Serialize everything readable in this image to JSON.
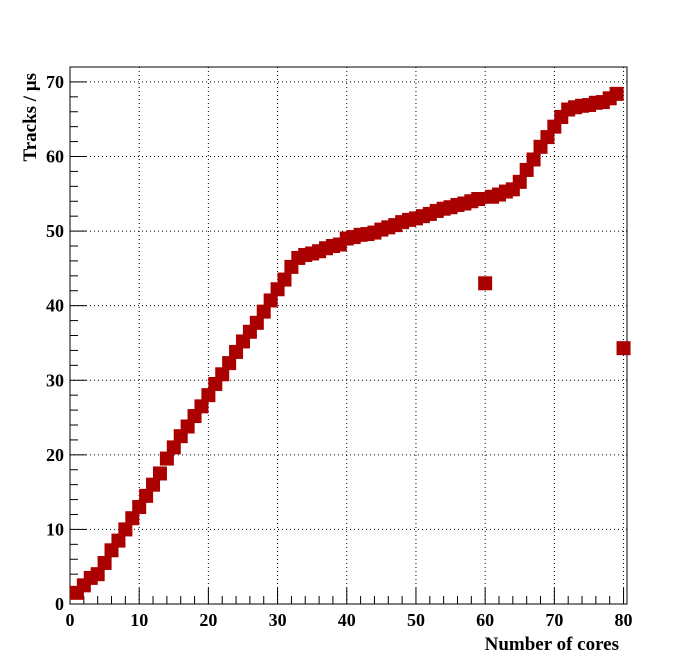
{
  "chart_data": {
    "type": "scatter",
    "xlabel": "Number of cores",
    "ylabel": "Tracks / μs",
    "xlim": [
      0,
      80.5
    ],
    "ylim": [
      0,
      72
    ],
    "xticks": [
      0,
      10,
      20,
      30,
      40,
      50,
      60,
      70,
      80
    ],
    "yticks": [
      0,
      10,
      20,
      30,
      40,
      50,
      60,
      70
    ],
    "grid": true,
    "marker_color": "#aa0000",
    "series": [
      {
        "x": [
          1,
          2,
          3,
          4,
          5,
          6,
          7,
          8,
          9,
          10,
          11,
          12,
          13,
          14,
          15,
          16,
          17,
          18,
          19,
          20,
          21,
          22,
          23,
          24,
          25,
          26,
          27,
          28,
          29,
          30,
          31,
          32,
          33,
          34,
          35,
          36,
          37,
          38,
          39,
          40,
          41,
          42,
          43,
          44,
          45,
          46,
          47,
          48,
          49,
          50,
          51,
          52,
          53,
          54,
          55,
          56,
          57,
          58,
          59,
          60,
          61,
          62,
          63,
          64,
          65,
          66,
          67,
          68,
          69,
          70,
          71,
          72,
          73,
          74,
          75,
          76,
          77,
          78,
          79,
          80
        ],
        "y": [
          1.5,
          2.5,
          3.5,
          4.0,
          5.5,
          7.2,
          8.5,
          10.0,
          11.5,
          13.0,
          14.5,
          16.0,
          17.5,
          19.5,
          21.0,
          22.5,
          23.8,
          25.2,
          26.5,
          28.0,
          29.5,
          30.8,
          32.3,
          33.8,
          35.2,
          36.5,
          37.7,
          39.2,
          40.7,
          42.2,
          43.5,
          45.2,
          46.4,
          46.8,
          47.0,
          47.3,
          47.7,
          48.0,
          48.2,
          49.0,
          49.2,
          49.5,
          49.6,
          49.8,
          50.2,
          50.5,
          50.8,
          51.2,
          51.5,
          51.7,
          52.0,
          52.3,
          52.7,
          53.0,
          53.2,
          53.5,
          53.7,
          54.0,
          54.3,
          43.0,
          54.6,
          54.9,
          55.3,
          55.6,
          56.6,
          58.2,
          59.6,
          61.3,
          62.6,
          64.0,
          65.3,
          66.3,
          66.6,
          66.8,
          66.9,
          67.2,
          67.3,
          67.8,
          68.4,
          34.3
        ]
      }
    ]
  }
}
